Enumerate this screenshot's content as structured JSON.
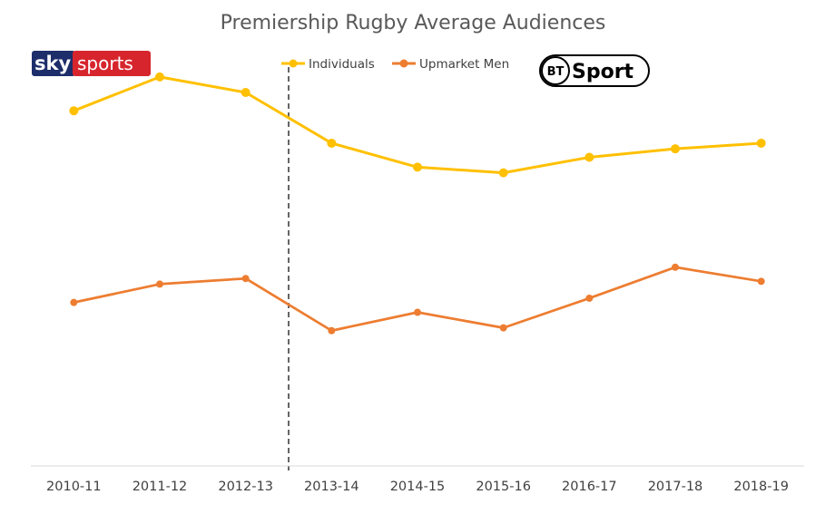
{
  "chart_data": {
    "type": "line",
    "title": "Premiership Rugby Average Audiences",
    "categories": [
      "2010-11",
      "2011-12",
      "2012-13",
      "2013-14",
      "2014-15",
      "2015-16",
      "2016-17",
      "2017-18",
      "2018-19"
    ],
    "series": [
      {
        "name": "Individuals",
        "color": "#ffc000",
        "values": [
          93,
          105,
          99.5,
          81.5,
          73,
          71,
          76.5,
          79.5,
          81.5
        ]
      },
      {
        "name": "Upmarket Men",
        "color": "#ed7d31",
        "values": [
          25,
          31.5,
          33.5,
          15,
          21.5,
          16,
          26.5,
          37.5,
          32.5
        ]
      }
    ],
    "ylim": [
      -33,
      113
    ],
    "divider_between": [
      "2012-13",
      "2013-14"
    ],
    "legend": "top-center",
    "grid": false
  },
  "logos": {
    "sky": {
      "word1": "sky",
      "word2": "sports"
    },
    "bt": {
      "badge": "BT",
      "word": "Sport"
    }
  }
}
